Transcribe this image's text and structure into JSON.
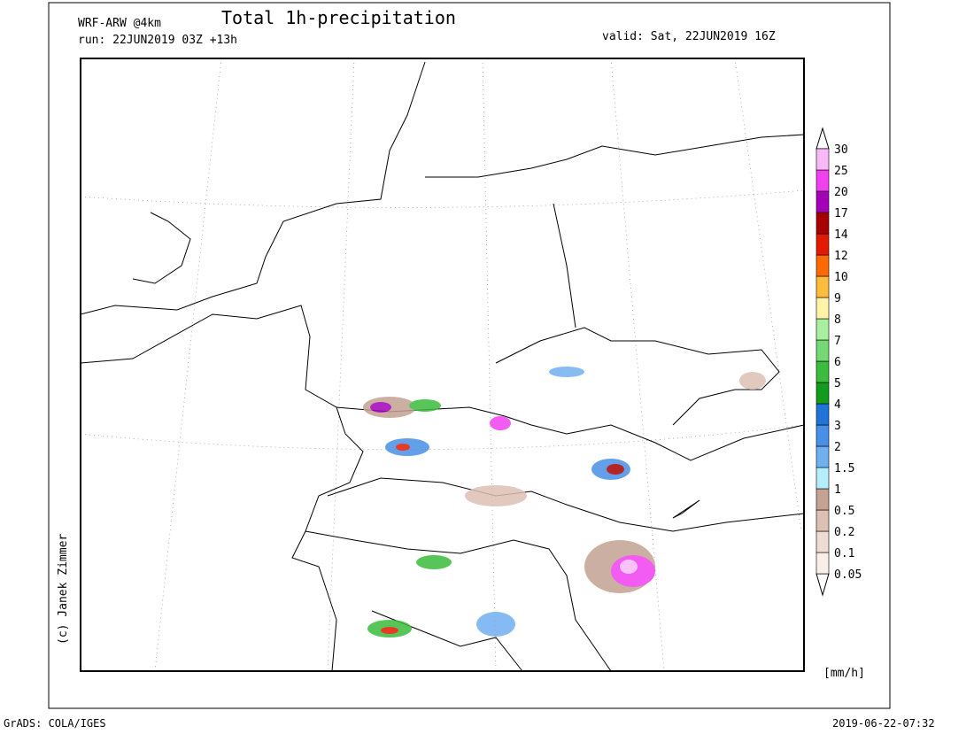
{
  "header": {
    "model": "WRF-ARW @4km",
    "run": "run: 22JUN2019 03Z +13h",
    "title": "Total 1h-precipitation",
    "valid": "valid: Sat, 22JUN2019 16Z"
  },
  "credit": "(c) Janek Zimmer",
  "colorbar": {
    "levels": [
      0.05,
      0.1,
      0.2,
      0.5,
      1,
      1.5,
      2,
      3,
      4,
      5,
      6,
      7,
      8,
      9,
      10,
      12,
      14,
      17,
      20,
      25,
      30
    ],
    "colors": [
      "#faeee8",
      "#ecdcd4",
      "#dcc0b4",
      "#c4a294",
      "#b4eefa",
      "#70b0f0",
      "#4890e6",
      "#1f74d8",
      "#129c1e",
      "#3cbc3c",
      "#74d874",
      "#a8f0a0",
      "#fff3a8",
      "#ffbc3c",
      "#ff6a00",
      "#e41a00",
      "#a80000",
      "#a400b8",
      "#f040f0",
      "#f8b8f8"
    ],
    "unit": "[mm/h]"
  },
  "footer": {
    "left": "GrADS: COLA/IGES",
    "right": "2019-06-22-07:32"
  }
}
